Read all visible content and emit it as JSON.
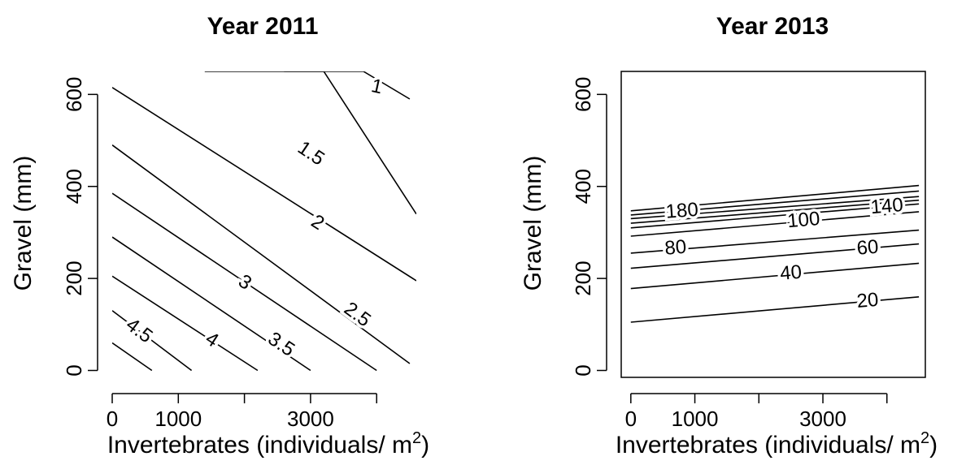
{
  "chart_data": [
    {
      "type": "contour",
      "title": "Year 2011",
      "xlabel": "Invertebrates (individuals/ m",
      "xlabel_sup": "2",
      "xlabel_end": ")",
      "ylabel": "Gravel (mm)",
      "xlim": [
        0,
        4600
      ],
      "ylim": [
        -15,
        650
      ],
      "x_ticks": [
        0,
        1000,
        2000,
        3000,
        4000
      ],
      "x_tick_labels": [
        "0",
        "1000",
        "",
        "3000",
        ""
      ],
      "y_ticks": [
        0,
        200,
        400,
        600
      ],
      "y_tick_labels": [
        "0",
        "200",
        "400",
        "600"
      ],
      "grid": false,
      "contours": [
        {
          "label": "1",
          "points": [
            [
              2600,
              650
            ],
            [
              3800,
              650
            ],
            [
              4500,
              590
            ]
          ],
          "label_at": [
            4000,
            615
          ]
        },
        {
          "label": "1.5",
          "points": [
            [
              1400,
              650
            ],
            [
              3200,
              650
            ],
            [
              4600,
              340
            ]
          ],
          "label_at": [
            3000,
            470
          ]
        },
        {
          "label": "2",
          "points": [
            [
              0,
              615
            ],
            [
              4600,
              195
            ]
          ],
          "label_at": [
            3100,
            320
          ]
        },
        {
          "label": "2.5",
          "points": [
            [
              0,
              490
            ],
            [
              3600,
              110
            ],
            [
              4500,
              15
            ]
          ],
          "label_at": [
            3700,
            120
          ]
        },
        {
          "label": "3",
          "points": [
            [
              0,
              385
            ],
            [
              4000,
              0
            ]
          ],
          "label_at": [
            2000,
            190
          ]
        },
        {
          "label": "3.5",
          "points": [
            [
              0,
              290
            ],
            [
              3000,
              0
            ]
          ],
          "label_at": [
            2550,
            55
          ]
        },
        {
          "label": "4",
          "points": [
            [
              0,
              205
            ],
            [
              2200,
              0
            ]
          ],
          "label_at": [
            1500,
            65
          ]
        },
        {
          "label": "4.5",
          "points": [
            [
              0,
              130
            ],
            [
              1200,
              0
            ]
          ],
          "label_at": [
            400,
            85
          ]
        },
        {
          "label": "",
          "points": [
            [
              0,
              60
            ],
            [
              600,
              0
            ]
          ],
          "label_at": null
        }
      ]
    },
    {
      "type": "contour",
      "title": "Year 2013",
      "xlabel": "Invertebrates (individuals/ m",
      "xlabel_sup": "2",
      "xlabel_end": ")",
      "ylabel": "Gravel (mm)",
      "xlim": [
        -150,
        4600
      ],
      "ylim": [
        -15,
        650
      ],
      "x_ticks": [
        0,
        1000,
        2000,
        3000,
        4000
      ],
      "x_tick_labels": [
        "0",
        "1000",
        "",
        "3000",
        ""
      ],
      "y_ticks": [
        0,
        200,
        400,
        600
      ],
      "y_tick_labels": [
        "0",
        "200",
        "400",
        "600"
      ],
      "grid": false,
      "contours": [
        {
          "label": "180",
          "points": [
            [
              0,
              330
            ],
            [
              4500,
              378
            ]
          ],
          "label_at": [
            800,
            345
          ]
        },
        {
          "label": "140",
          "points": [
            [
              0,
              310
            ],
            [
              4500,
              362
            ]
          ],
          "label_at": [
            4000,
            355
          ]
        },
        {
          "label": "100",
          "points": [
            [
              0,
              292
            ],
            [
              4500,
              345
            ]
          ],
          "label_at": [
            2700,
            325
          ]
        },
        {
          "label": "80",
          "points": [
            [
              0,
              255
            ],
            [
              4500,
              305
            ]
          ],
          "label_at": [
            700,
            265
          ]
        },
        {
          "label": "60",
          "points": [
            [
              0,
              222
            ],
            [
              4500,
              275
            ]
          ],
          "label_at": [
            3700,
            265
          ]
        },
        {
          "label": "40",
          "points": [
            [
              0,
              178
            ],
            [
              4500,
              233
            ]
          ],
          "label_at": [
            2500,
            210
          ]
        },
        {
          "label": "20",
          "points": [
            [
              0,
              105
            ],
            [
              4500,
              160
            ]
          ],
          "label_at": [
            3700,
            150
          ]
        },
        {
          "label": "",
          "points": [
            [
              0,
              338
            ],
            [
              4500,
              390
            ]
          ],
          "label_at": null
        },
        {
          "label": "",
          "points": [
            [
              0,
              347
            ],
            [
              4500,
              402
            ]
          ],
          "label_at": null
        },
        {
          "label": "",
          "points": [
            [
              0,
              320
            ],
            [
              4500,
              370
            ]
          ],
          "label_at": null
        }
      ]
    }
  ]
}
